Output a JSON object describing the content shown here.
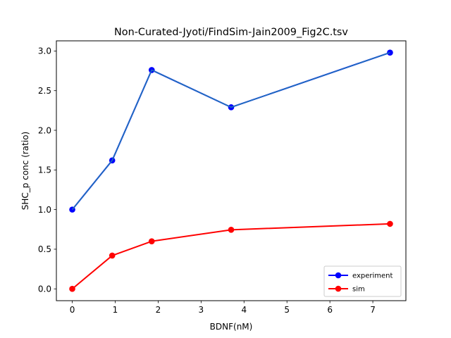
{
  "chart_data": {
    "type": "line",
    "title": "Non-Curated-Jyoti/FindSim-Jain2009_Fig2C.tsv",
    "xlabel": "BDNF(nM)",
    "ylabel": "SHC_p conc (ratio)",
    "xlim": [
      -0.37,
      7.77
    ],
    "ylim": [
      -0.149,
      3.128
    ],
    "xticks": [
      0,
      1,
      2,
      3,
      4,
      5,
      6,
      7
    ],
    "xtick_labels": [
      "0",
      "1",
      "2",
      "3",
      "4",
      "5",
      "6",
      "7"
    ],
    "yticks": [
      0.0,
      0.5,
      1.0,
      1.5,
      2.0,
      2.5,
      3.0
    ],
    "ytick_labels": [
      "0.0",
      "0.5",
      "1.0",
      "1.5",
      "2.0",
      "2.5",
      "3.0"
    ],
    "grid": false,
    "legend_position": "lower right",
    "series": [
      {
        "name": "experiment",
        "color": "#0000ff",
        "overlay_color": "#1f77b4",
        "marker": "circle",
        "x": [
          0,
          0.93,
          1.85,
          3.7,
          7.4
        ],
        "y": [
          1.0,
          1.62,
          2.76,
          2.29,
          2.98
        ]
      },
      {
        "name": "sim",
        "color": "#ff0000",
        "marker": "circle",
        "x": [
          0,
          0.93,
          1.85,
          3.7,
          7.4
        ],
        "y": [
          0.0,
          0.42,
          0.6,
          0.745,
          0.82
        ]
      }
    ]
  }
}
